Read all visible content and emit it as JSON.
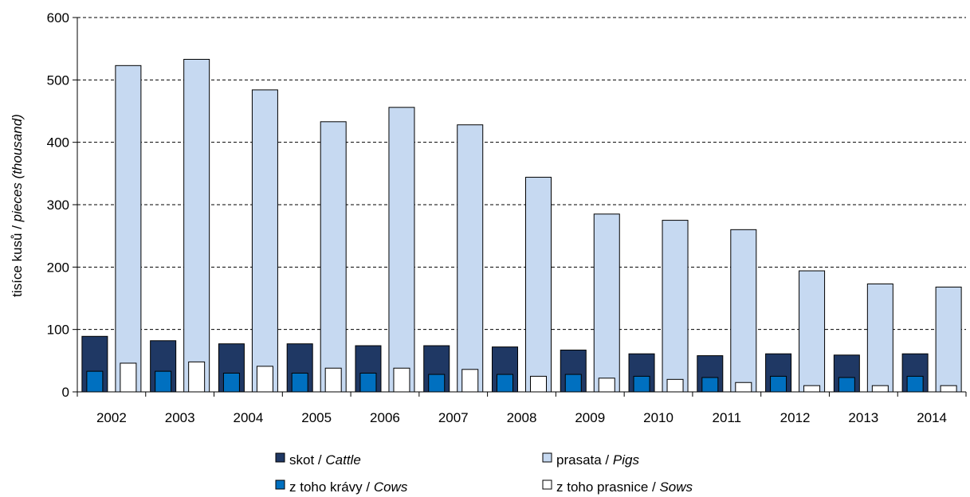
{
  "chart_data": {
    "type": "bar",
    "categories": [
      "2002",
      "2003",
      "2004",
      "2005",
      "2006",
      "2007",
      "2008",
      "2009",
      "2010",
      "2011",
      "2012",
      "2013",
      "2014"
    ],
    "series": [
      {
        "name_main": "skot / ",
        "name_en": "Cattle",
        "color": "#1f3864",
        "kind": "back-pair",
        "values": [
          89,
          82,
          77,
          77,
          74,
          74,
          72,
          67,
          61,
          58,
          61,
          59,
          61
        ]
      },
      {
        "name_main": "prasata / ",
        "name_en": "Pigs",
        "color": "#c6d9f1",
        "kind": "back-pair",
        "values": [
          523,
          533,
          484,
          433,
          456,
          428,
          344,
          285,
          275,
          260,
          194,
          173,
          168
        ]
      },
      {
        "name_main": "z toho krávy / ",
        "name_en": "Cows",
        "color": "#0070c0",
        "kind": "front-pair",
        "values": [
          33,
          33,
          30,
          30,
          30,
          28,
          28,
          28,
          25,
          23,
          25,
          23,
          25
        ]
      },
      {
        "name_main": "z toho prasnice / ",
        "name_en": "Sows",
        "color": "#ffffff",
        "kind": "front-pair",
        "values": [
          46,
          48,
          41,
          38,
          38,
          36,
          25,
          22,
          20,
          15,
          10,
          10,
          10
        ]
      }
    ],
    "ylabel_main": "tisíce kusů / ",
    "ylabel_en": "pieces (thousand)",
    "ylim": [
      0,
      600
    ],
    "yticks": [
      0,
      100,
      200,
      300,
      400,
      500,
      600
    ],
    "grid": true,
    "legend_position": "bottom"
  }
}
